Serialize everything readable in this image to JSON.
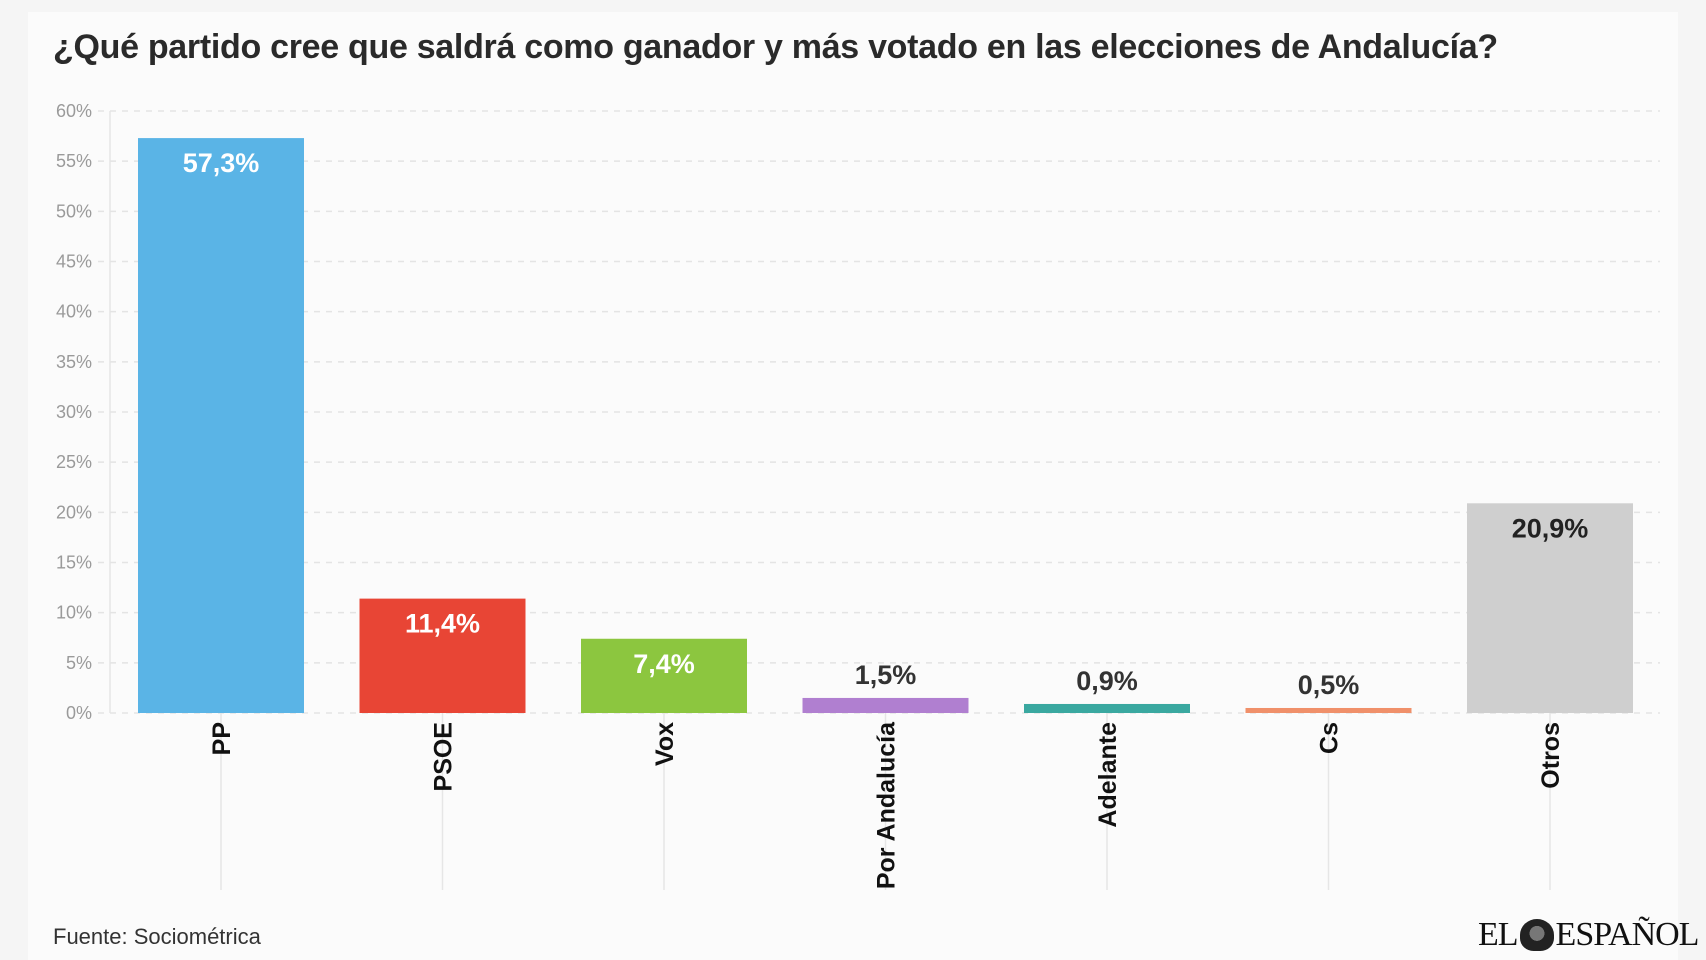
{
  "title": "¿Qué partido cree que saldrá como ganador y más votado en las elecciones de Andalucía?",
  "source": "Fuente: Sociométrica",
  "logo": "EL ESPAÑOL",
  "chart_data": {
    "type": "bar",
    "title": "¿Qué partido cree que saldrá como ganador y más votado en las elecciones de Andalucía?",
    "categories": [
      "PP",
      "PSOE",
      "Vox",
      "Por Andalucía",
      "Adelante",
      "Cs",
      "Otros"
    ],
    "values": [
      57.3,
      11.4,
      7.4,
      1.5,
      0.9,
      0.5,
      20.9
    ],
    "data_labels": [
      "57,3%",
      "11,4%",
      "7,4%",
      "1,5%",
      "0,9%",
      "0,5%",
      "20,9%"
    ],
    "colors": [
      "#5ab4e6",
      "#e84535",
      "#8cc63f",
      "#b07fd0",
      "#3aa8a0",
      "#f0906a",
      "#cfcfcf"
    ],
    "label_colors": [
      "#ffffff",
      "#ffffff",
      "#ffffff",
      "#333333",
      "#333333",
      "#333333",
      "#222222"
    ],
    "ylim": [
      0,
      60
    ],
    "yticks": [
      "0%",
      "5%",
      "10%",
      "15%",
      "20%",
      "25%",
      "30%",
      "35%",
      "40%",
      "45%",
      "50%",
      "55%",
      "60%"
    ],
    "grid": true,
    "xlabel": "",
    "ylabel": ""
  }
}
